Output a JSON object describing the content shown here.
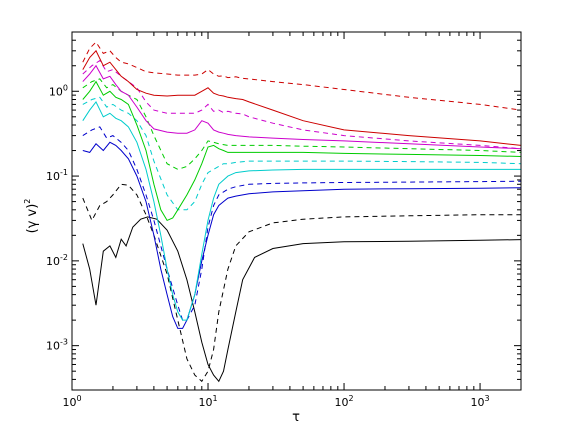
{
  "chart_data": {
    "type": "line",
    "xscale": "log",
    "yscale": "log",
    "xlim": [
      1,
      2000
    ],
    "ylim": [
      0.0003,
      5
    ],
    "xlabel": "τ",
    "ylabel": {
      "base": "(γ v)",
      "exp": "2"
    },
    "xticks": [
      {
        "value": 1,
        "base": "10",
        "exp": "0"
      },
      {
        "value": 10,
        "base": "10",
        "exp": "1"
      },
      {
        "value": 100,
        "base": "10",
        "exp": "2"
      },
      {
        "value": 1000,
        "base": "10",
        "exp": "3"
      }
    ],
    "yticks": [
      {
        "value": 0.001,
        "base": "10",
        "exp": "-3"
      },
      {
        "value": 0.01,
        "base": "10",
        "exp": "-2"
      },
      {
        "value": 0.1,
        "base": "10",
        "exp": "-1"
      },
      {
        "value": 1,
        "base": "10",
        "exp": "0"
      }
    ],
    "grid": false,
    "legend": "none",
    "series": [
      {
        "color": "#000000",
        "dash": "solid",
        "x": [
          1.2,
          1.35,
          1.5,
          1.7,
          1.9,
          2.1,
          2.3,
          2.5,
          2.8,
          3.2,
          3.6,
          4.2,
          5,
          6,
          7,
          8,
          9,
          10,
          11,
          12,
          13,
          14,
          16,
          18,
          22,
          30,
          50,
          100,
          300,
          1000,
          2000
        ],
        "y": [
          0.016,
          0.008,
          0.003,
          0.013,
          0.015,
          0.011,
          0.018,
          0.015,
          0.025,
          0.031,
          0.033,
          0.031,
          0.023,
          0.013,
          0.006,
          0.0025,
          0.0011,
          0.0006,
          0.00045,
          0.00038,
          0.0005,
          0.0009,
          0.0025,
          0.006,
          0.011,
          0.014,
          0.016,
          0.0168,
          0.017,
          0.0175,
          0.0178
        ]
      },
      {
        "color": "#000000",
        "dash": "dashed",
        "x": [
          1.2,
          1.4,
          1.6,
          1.8,
          2.0,
          2.3,
          2.6,
          3.0,
          3.5,
          4,
          5,
          6,
          7,
          8,
          9,
          10,
          11,
          12,
          14,
          16,
          20,
          30,
          50,
          100,
          300,
          1000,
          2000
        ],
        "y": [
          0.055,
          0.03,
          0.045,
          0.05,
          0.06,
          0.08,
          0.078,
          0.06,
          0.035,
          0.02,
          0.007,
          0.002,
          0.0007,
          0.00045,
          0.00038,
          0.0005,
          0.0009,
          0.0025,
          0.008,
          0.015,
          0.022,
          0.028,
          0.031,
          0.033,
          0.034,
          0.035,
          0.035
        ]
      },
      {
        "color": "#0000cc",
        "dash": "solid",
        "x": [
          1.2,
          1.35,
          1.5,
          1.7,
          1.9,
          2.1,
          2.3,
          2.6,
          3.0,
          3.5,
          4,
          4.5,
          5,
          5.5,
          6,
          6.5,
          7,
          8,
          9,
          10,
          11,
          12,
          13,
          14,
          16,
          20,
          30,
          50,
          100,
          300,
          1000,
          2000
        ],
        "y": [
          0.2,
          0.19,
          0.24,
          0.2,
          0.25,
          0.23,
          0.2,
          0.16,
          0.1,
          0.05,
          0.02,
          0.008,
          0.004,
          0.0022,
          0.0016,
          0.0016,
          0.002,
          0.004,
          0.01,
          0.02,
          0.035,
          0.045,
          0.05,
          0.055,
          0.058,
          0.062,
          0.065,
          0.067,
          0.07,
          0.071,
          0.072,
          0.073
        ]
      },
      {
        "color": "#0000cc",
        "dash": "dashed",
        "x": [
          1.2,
          1.4,
          1.6,
          1.8,
          2.0,
          2.3,
          2.6,
          3.0,
          3.5,
          4,
          5,
          6,
          6.5,
          7,
          8,
          9,
          10,
          11,
          12,
          14,
          16,
          20,
          30,
          50,
          100,
          300,
          1000,
          2000
        ],
        "y": [
          0.3,
          0.35,
          0.38,
          0.28,
          0.3,
          0.25,
          0.2,
          0.12,
          0.06,
          0.03,
          0.008,
          0.003,
          0.002,
          0.002,
          0.003,
          0.008,
          0.025,
          0.045,
          0.06,
          0.07,
          0.075,
          0.08,
          0.082,
          0.083,
          0.084,
          0.085,
          0.086,
          0.087
        ]
      },
      {
        "color": "#00cccc",
        "dash": "solid",
        "x": [
          1.2,
          1.35,
          1.5,
          1.7,
          1.9,
          2.1,
          2.3,
          2.6,
          3.0,
          3.5,
          4,
          4.5,
          5,
          5.5,
          6,
          6.5,
          7,
          8,
          9,
          10,
          11,
          12,
          14,
          16,
          20,
          30,
          50,
          100,
          300,
          1000,
          2000
        ],
        "y": [
          0.45,
          0.6,
          0.75,
          0.5,
          0.55,
          0.48,
          0.45,
          0.38,
          0.25,
          0.12,
          0.05,
          0.02,
          0.008,
          0.004,
          0.0025,
          0.002,
          0.002,
          0.004,
          0.012,
          0.03,
          0.055,
          0.08,
          0.1,
          0.11,
          0.115,
          0.118,
          0.12,
          0.12,
          0.12,
          0.12,
          0.12
        ]
      },
      {
        "color": "#00cccc",
        "dash": "dashed",
        "x": [
          1.2,
          1.4,
          1.6,
          1.8,
          2.0,
          2.3,
          2.6,
          3.0,
          3.5,
          4,
          5,
          6,
          7,
          8,
          9,
          10,
          11,
          12,
          13,
          14,
          16,
          20,
          30,
          50,
          100,
          300,
          1000,
          2000
        ],
        "y": [
          0.7,
          0.8,
          0.85,
          0.65,
          0.7,
          0.6,
          0.55,
          0.45,
          0.3,
          0.15,
          0.06,
          0.04,
          0.04,
          0.05,
          0.08,
          0.11,
          0.12,
          0.13,
          0.14,
          0.14,
          0.145,
          0.15,
          0.15,
          0.15,
          0.15,
          0.148,
          0.145,
          0.14
        ]
      },
      {
        "color": "#00cc00",
        "dash": "solid",
        "x": [
          1.2,
          1.35,
          1.5,
          1.7,
          1.9,
          2.1,
          2.3,
          2.6,
          3.0,
          3.5,
          4,
          4.5,
          5,
          5.5,
          6,
          7,
          8,
          9,
          10,
          11,
          12,
          13,
          14,
          16,
          20,
          30,
          50,
          100,
          300,
          1000,
          2000
        ],
        "y": [
          0.8,
          1.0,
          1.3,
          0.9,
          1.0,
          0.85,
          0.8,
          0.7,
          0.4,
          0.2,
          0.08,
          0.04,
          0.03,
          0.032,
          0.04,
          0.06,
          0.09,
          0.14,
          0.22,
          0.23,
          0.21,
          0.2,
          0.19,
          0.19,
          0.19,
          0.19,
          0.19,
          0.185,
          0.18,
          0.175,
          0.17
        ]
      },
      {
        "color": "#00cc00",
        "dash": "dashed",
        "x": [
          1.2,
          1.4,
          1.6,
          1.8,
          2.0,
          2.3,
          2.6,
          3.0,
          3.5,
          4,
          5,
          6,
          7,
          8,
          9,
          10,
          11,
          12,
          13,
          14,
          16,
          20,
          30,
          50,
          100,
          300,
          1000,
          2000
        ],
        "y": [
          1.1,
          1.3,
          1.4,
          1.1,
          1.2,
          1.0,
          0.9,
          0.8,
          0.5,
          0.3,
          0.14,
          0.12,
          0.13,
          0.16,
          0.2,
          0.26,
          0.25,
          0.24,
          0.235,
          0.23,
          0.23,
          0.23,
          0.23,
          0.225,
          0.22,
          0.21,
          0.2,
          0.19
        ]
      },
      {
        "color": "#cc00cc",
        "dash": "solid",
        "x": [
          1.2,
          1.35,
          1.5,
          1.7,
          1.9,
          2.1,
          2.3,
          2.6,
          3.0,
          3.5,
          4,
          5,
          6,
          7,
          8,
          9,
          10,
          11,
          12,
          13,
          14,
          16,
          20,
          30,
          50,
          100,
          300,
          1000,
          2000
        ],
        "y": [
          1.3,
          1.6,
          2.0,
          1.4,
          1.5,
          1.2,
          1.0,
          0.9,
          0.65,
          0.45,
          0.36,
          0.33,
          0.32,
          0.32,
          0.35,
          0.45,
          0.42,
          0.35,
          0.33,
          0.32,
          0.31,
          0.3,
          0.29,
          0.28,
          0.27,
          0.26,
          0.24,
          0.22,
          0.21
        ]
      },
      {
        "color": "#cc00cc",
        "dash": "dashed",
        "x": [
          1.2,
          1.4,
          1.6,
          1.8,
          2.0,
          2.3,
          2.6,
          3.0,
          3.5,
          4,
          5,
          6,
          7,
          8,
          9,
          10,
          11,
          12,
          13,
          14,
          16,
          18,
          20,
          30,
          50,
          100,
          300,
          1000,
          2000
        ],
        "y": [
          1.6,
          2.0,
          2.3,
          1.7,
          1.8,
          1.5,
          1.3,
          1.1,
          0.75,
          0.6,
          0.55,
          0.55,
          0.55,
          0.55,
          0.6,
          0.7,
          0.58,
          0.6,
          0.56,
          0.58,
          0.55,
          0.54,
          0.5,
          0.42,
          0.35,
          0.3,
          0.26,
          0.23,
          0.21
        ]
      },
      {
        "color": "#cc0000",
        "dash": "solid",
        "x": [
          1.2,
          1.35,
          1.5,
          1.7,
          1.9,
          2.1,
          2.3,
          2.6,
          3.0,
          3.5,
          4,
          5,
          6,
          7,
          8,
          9,
          10,
          11,
          12,
          13,
          14,
          16,
          18,
          20,
          30,
          50,
          100,
          300,
          1000,
          2000
        ],
        "y": [
          1.8,
          2.5,
          3.0,
          2.0,
          2.2,
          1.8,
          1.5,
          1.3,
          1.05,
          0.95,
          0.9,
          0.88,
          0.9,
          0.9,
          0.9,
          1.0,
          1.1,
          0.95,
          0.9,
          0.88,
          0.85,
          0.82,
          0.8,
          0.75,
          0.6,
          0.45,
          0.35,
          0.3,
          0.26,
          0.23
        ]
      },
      {
        "color": "#cc0000",
        "dash": "dashed",
        "x": [
          1.2,
          1.35,
          1.5,
          1.7,
          1.9,
          2.1,
          2.3,
          2.6,
          3.0,
          3.5,
          4,
          5,
          6,
          7,
          8,
          9,
          10,
          11,
          12,
          13,
          14,
          16,
          18,
          20,
          30,
          50,
          100,
          300,
          1000,
          2000
        ],
        "y": [
          2.2,
          3.2,
          3.8,
          2.8,
          3.0,
          2.5,
          2.2,
          2.1,
          1.9,
          1.7,
          1.65,
          1.6,
          1.55,
          1.55,
          1.55,
          1.6,
          1.8,
          1.6,
          1.5,
          1.52,
          1.45,
          1.48,
          1.42,
          1.4,
          1.3,
          1.2,
          1.05,
          0.85,
          0.7,
          0.6
        ]
      }
    ]
  }
}
